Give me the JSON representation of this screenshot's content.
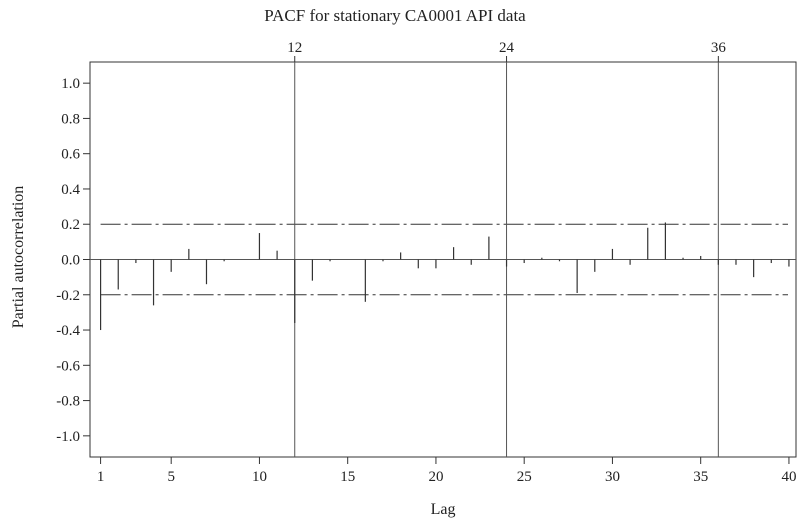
{
  "chart_data": {
    "type": "bar",
    "title": "PACF for stationary CA0001 API data",
    "xlabel": "Lag",
    "ylabel": "Partial autocorrelation",
    "xlim": [
      0.4,
      40.4
    ],
    "ylim": [
      -1.12,
      1.12
    ],
    "x_ticks": [
      1,
      5,
      10,
      15,
      20,
      25,
      30,
      35,
      40
    ],
    "y_ticks": [
      -1.0,
      -0.8,
      -0.6,
      -0.4,
      -0.2,
      0.0,
      0.2,
      0.4,
      0.6,
      0.8,
      1.0
    ],
    "y_tick_labels": [
      "-1.0",
      "-0.8",
      "-0.6",
      "-0.4",
      "-0.2",
      "0.0",
      "0.2",
      "0.4",
      "0.6",
      "0.8",
      "1.0"
    ],
    "reference_lags": [
      12,
      24,
      36
    ],
    "reference_labels": [
      "12",
      "24",
      "36"
    ],
    "significance_limits": [
      0.2,
      -0.2
    ],
    "grid": false,
    "lags": [
      1,
      2,
      3,
      4,
      5,
      6,
      7,
      8,
      9,
      10,
      11,
      12,
      13,
      14,
      15,
      16,
      17,
      18,
      19,
      20,
      21,
      22,
      23,
      24,
      25,
      26,
      27,
      28,
      29,
      30,
      31,
      32,
      33,
      34,
      35,
      36,
      37,
      38,
      39,
      40
    ],
    "values": [
      -0.4,
      -0.17,
      -0.02,
      -0.26,
      -0.07,
      0.06,
      -0.14,
      -0.01,
      0.0,
      0.15,
      0.05,
      -0.36,
      -0.12,
      -0.01,
      0.0,
      -0.24,
      -0.01,
      0.04,
      -0.05,
      -0.05,
      0.07,
      -0.03,
      0.13,
      -0.04,
      -0.02,
      0.01,
      -0.01,
      -0.19,
      -0.07,
      0.06,
      -0.03,
      0.18,
      0.21,
      0.01,
      0.02,
      -0.03,
      -0.03,
      -0.1,
      -0.02,
      -0.04
    ]
  }
}
